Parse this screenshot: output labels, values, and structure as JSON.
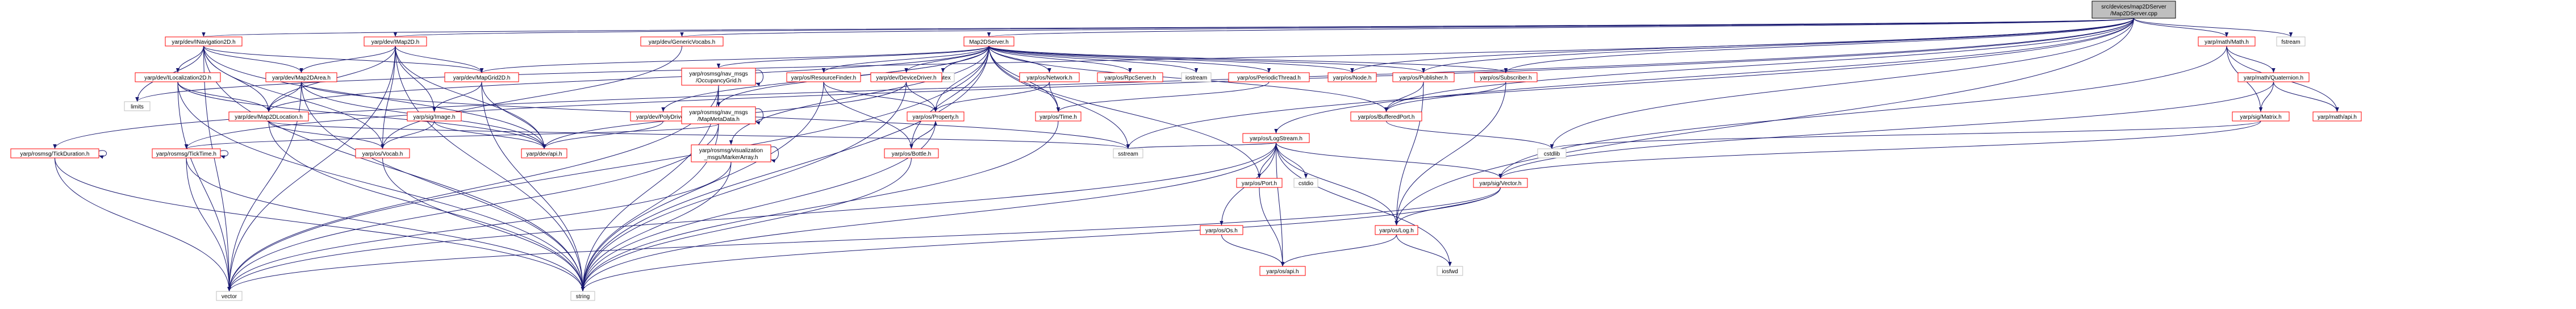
{
  "graph": {
    "colors": {
      "background": "#ffffff",
      "root_fill": "#bfbfbf",
      "root_stroke": "#000000",
      "doc_stroke": "#ff0000",
      "plain_stroke": "#bfbfbf",
      "edge": "#191970",
      "text": "#000000"
    },
    "nodes": [
      {
        "id": "root",
        "lines": [
          "src/devices/map2DServer",
          "/Map2DServer.cpp"
        ],
        "kind": "root"
      },
      {
        "id": "nav2d",
        "lines": [
          "yarp/dev/INavigation2D.h"
        ],
        "kind": "doc"
      },
      {
        "id": "imap2d",
        "lines": [
          "yarp/dev/IMap2D.h"
        ],
        "kind": "doc"
      },
      {
        "id": "genvocab",
        "lines": [
          "yarp/dev/GenericVocabs.h"
        ],
        "kind": "doc"
      },
      {
        "id": "map2dserver_h",
        "lines": [
          "Map2DServer.h"
        ],
        "kind": "doc"
      },
      {
        "id": "ymath",
        "lines": [
          "yarp/math/Math.h"
        ],
        "kind": "doc"
      },
      {
        "id": "fstream",
        "lines": [
          "fstream"
        ],
        "kind": "plain"
      },
      {
        "id": "limits",
        "lines": [
          "limits"
        ],
        "kind": "plain"
      },
      {
        "id": "iloc2d",
        "lines": [
          "yarp/dev/ILocalization2D.h"
        ],
        "kind": "doc"
      },
      {
        "id": "map2darea",
        "lines": [
          "yarp/dev/Map2DArea.h"
        ],
        "kind": "doc"
      },
      {
        "id": "mapgrid2d",
        "lines": [
          "yarp/dev/MapGrid2D.h"
        ],
        "kind": "doc"
      },
      {
        "id": "mutex",
        "lines": [
          "mutex"
        ],
        "kind": "plain"
      },
      {
        "id": "occgrid",
        "lines": [
          "yarp/rosmsg/nav_msgs",
          "/OccupancyGrid.h"
        ],
        "kind": "doc"
      },
      {
        "id": "resfinder",
        "lines": [
          "yarp/os/ResourceFinder.h"
        ],
        "kind": "doc"
      },
      {
        "id": "devdriver",
        "lines": [
          "yarp/dev/DeviceDriver.h"
        ],
        "kind": "doc"
      },
      {
        "id": "network",
        "lines": [
          "yarp/os/Network.h"
        ],
        "kind": "doc"
      },
      {
        "id": "rpcserver",
        "lines": [
          "yarp/os/RpcServer.h"
        ],
        "kind": "doc"
      },
      {
        "id": "iostream",
        "lines": [
          "iostream"
        ],
        "kind": "plain"
      },
      {
        "id": "periodic",
        "lines": [
          "yarp/os/PeriodicThread.h"
        ],
        "kind": "doc"
      },
      {
        "id": "node",
        "lines": [
          "yarp/os/Node.h"
        ],
        "kind": "doc"
      },
      {
        "id": "publisher",
        "lines": [
          "yarp/os/Publisher.h"
        ],
        "kind": "doc"
      },
      {
        "id": "subscriber",
        "lines": [
          "yarp/os/Subscriber.h"
        ],
        "kind": "doc"
      },
      {
        "id": "quaternion",
        "lines": [
          "yarp/math/Quaternion.h"
        ],
        "kind": "doc"
      },
      {
        "id": "map2dloc",
        "lines": [
          "yarp/dev/Map2DLocation.h"
        ],
        "kind": "doc"
      },
      {
        "id": "image",
        "lines": [
          "yarp/sig/Image.h"
        ],
        "kind": "doc"
      },
      {
        "id": "polydriver",
        "lines": [
          "yarp/dev/PolyDriver.h"
        ],
        "kind": "doc"
      },
      {
        "id": "mapmeta",
        "lines": [
          "yarp/rosmsg/nav_msgs",
          "/MapMetaData.h"
        ],
        "kind": "doc"
      },
      {
        "id": "property",
        "lines": [
          "yarp/os/Property.h"
        ],
        "kind": "doc"
      },
      {
        "id": "ostime",
        "lines": [
          "yarp/os/Time.h"
        ],
        "kind": "doc"
      },
      {
        "id": "bufport",
        "lines": [
          "yarp/os/BufferedPort.h"
        ],
        "kind": "doc"
      },
      {
        "id": "logstream",
        "lines": [
          "yarp/os/LogStream.h"
        ],
        "kind": "doc"
      },
      {
        "id": "matrix",
        "lines": [
          "yarp/sig/Matrix.h"
        ],
        "kind": "doc"
      },
      {
        "id": "mathapi",
        "lines": [
          "yarp/math/api.h"
        ],
        "kind": "doc"
      },
      {
        "id": "tickdur",
        "lines": [
          "yarp/rosmsg/TickDuration.h"
        ],
        "kind": "doc"
      },
      {
        "id": "ticktime",
        "lines": [
          "yarp/rosmsg/TickTime.h"
        ],
        "kind": "doc"
      },
      {
        "id": "vocab",
        "lines": [
          "yarp/os/Vocab.h"
        ],
        "kind": "doc"
      },
      {
        "id": "devapi",
        "lines": [
          "yarp/dev/api.h"
        ],
        "kind": "doc"
      },
      {
        "id": "markerarray",
        "lines": [
          "yarp/rosmsg/visualization",
          "_msgs/MarkerArray.h"
        ],
        "kind": "doc"
      },
      {
        "id": "bottle",
        "lines": [
          "yarp/os/Bottle.h"
        ],
        "kind": "doc"
      },
      {
        "id": "sstream",
        "lines": [
          "sstream"
        ],
        "kind": "plain"
      },
      {
        "id": "cstdio",
        "lines": [
          "cstdio"
        ],
        "kind": "plain"
      },
      {
        "id": "osport",
        "lines": [
          "yarp/os/Port.h"
        ],
        "kind": "doc"
      },
      {
        "id": "osos",
        "lines": [
          "yarp/os/Os.h"
        ],
        "kind": "doc"
      },
      {
        "id": "oslog",
        "lines": [
          "yarp/os/Log.h"
        ],
        "kind": "doc"
      },
      {
        "id": "sigvector",
        "lines": [
          "yarp/sig/Vector.h"
        ],
        "kind": "doc"
      },
      {
        "id": "cstdlib",
        "lines": [
          "cstdlib"
        ],
        "kind": "plain"
      },
      {
        "id": "iosfwd",
        "lines": [
          "iosfwd"
        ],
        "kind": "plain"
      },
      {
        "id": "osapi",
        "lines": [
          "yarp/os/api.h"
        ],
        "kind": "doc"
      },
      {
        "id": "vector",
        "lines": [
          "vector"
        ],
        "kind": "plain"
      },
      {
        "id": "string",
        "lines": [
          "string"
        ],
        "kind": "plain"
      }
    ],
    "edges": [
      [
        "root",
        "nav2d"
      ],
      [
        "root",
        "imap2d"
      ],
      [
        "root",
        "genvocab"
      ],
      [
        "root",
        "map2dserver_h"
      ],
      [
        "root",
        "ymath"
      ],
      [
        "root",
        "fstream"
      ],
      [
        "root",
        "limits"
      ],
      [
        "root",
        "tickdur"
      ],
      [
        "root",
        "ticktime"
      ],
      [
        "root",
        "logstream"
      ],
      [
        "root",
        "bufport"
      ],
      [
        "root",
        "publisher"
      ],
      [
        "root",
        "subscriber"
      ],
      [
        "root",
        "node"
      ],
      [
        "root",
        "oslog"
      ],
      [
        "root",
        "cstdlib"
      ],
      [
        "root",
        "sstream"
      ],
      [
        "nav2d",
        "iloc2d"
      ],
      [
        "nav2d",
        "map2darea"
      ],
      [
        "nav2d",
        "map2dloc"
      ],
      [
        "nav2d",
        "vocab"
      ],
      [
        "nav2d",
        "devapi"
      ],
      [
        "nav2d",
        "vector"
      ],
      [
        "nav2d",
        "string"
      ],
      [
        "nav2d",
        "limits"
      ],
      [
        "nav2d",
        "mapgrid2d"
      ],
      [
        "imap2d",
        "map2darea"
      ],
      [
        "imap2d",
        "mapgrid2d"
      ],
      [
        "imap2d",
        "map2dloc"
      ],
      [
        "imap2d",
        "vocab"
      ],
      [
        "imap2d",
        "devapi"
      ],
      [
        "imap2d",
        "string"
      ],
      [
        "imap2d",
        "image"
      ],
      [
        "imap2d",
        "vector"
      ],
      [
        "genvocab",
        "vocab"
      ],
      [
        "map2dserver_h",
        "mutex"
      ],
      [
        "map2dserver_h",
        "occgrid"
      ],
      [
        "map2dserver_h",
        "resfinder"
      ],
      [
        "map2dserver_h",
        "devdriver"
      ],
      [
        "map2dserver_h",
        "network"
      ],
      [
        "map2dserver_h",
        "rpcserver"
      ],
      [
        "map2dserver_h",
        "iostream"
      ],
      [
        "map2dserver_h",
        "periodic"
      ],
      [
        "map2dserver_h",
        "node"
      ],
      [
        "map2dserver_h",
        "publisher"
      ],
      [
        "map2dserver_h",
        "subscriber"
      ],
      [
        "map2dserver_h",
        "polydriver"
      ],
      [
        "map2dserver_h",
        "mapmeta"
      ],
      [
        "map2dserver_h",
        "property"
      ],
      [
        "map2dserver_h",
        "ostime"
      ],
      [
        "map2dserver_h",
        "bufport"
      ],
      [
        "map2dserver_h",
        "string"
      ],
      [
        "map2dserver_h",
        "markerarray"
      ],
      [
        "map2dserver_h",
        "bottle"
      ],
      [
        "map2dserver_h",
        "osport"
      ],
      [
        "map2dserver_h",
        "vector"
      ],
      [
        "map2dserver_h",
        "sstream"
      ],
      [
        "map2dserver_h",
        "mapgrid2d"
      ],
      [
        "map2dserver_h",
        "map2dloc"
      ],
      [
        "ymath",
        "quaternion"
      ],
      [
        "ymath",
        "matrix"
      ],
      [
        "ymath",
        "sigvector"
      ],
      [
        "ymath",
        "mathapi"
      ],
      [
        "iloc2d",
        "map2dloc"
      ],
      [
        "iloc2d",
        "devapi"
      ],
      [
        "iloc2d",
        "vector"
      ],
      [
        "iloc2d",
        "string"
      ],
      [
        "map2darea",
        "map2dloc"
      ],
      [
        "map2darea",
        "vector"
      ],
      [
        "map2darea",
        "string"
      ],
      [
        "map2darea",
        "devapi"
      ],
      [
        "map2darea",
        "sstream"
      ],
      [
        "mapgrid2d",
        "image"
      ],
      [
        "mapgrid2d",
        "devapi"
      ],
      [
        "mapgrid2d",
        "string"
      ],
      [
        "occgrid",
        "occgrid"
      ],
      [
        "occgrid",
        "mapmeta"
      ],
      [
        "occgrid",
        "vector"
      ],
      [
        "occgrid",
        "string"
      ],
      [
        "resfinder",
        "property"
      ],
      [
        "resfinder",
        "bottle"
      ],
      [
        "resfinder",
        "string"
      ],
      [
        "devdriver",
        "property"
      ],
      [
        "devdriver",
        "devapi"
      ],
      [
        "devdriver",
        "string"
      ],
      [
        "network",
        "property"
      ],
      [
        "network",
        "ostime"
      ],
      [
        "periodic",
        "ostime"
      ],
      [
        "publisher",
        "bufport"
      ],
      [
        "publisher",
        "oslog"
      ],
      [
        "subscriber",
        "bufport"
      ],
      [
        "subscriber",
        "oslog"
      ],
      [
        "quaternion",
        "matrix"
      ],
      [
        "quaternion",
        "sigvector"
      ],
      [
        "quaternion",
        "mathapi"
      ],
      [
        "map2dloc",
        "vocab"
      ],
      [
        "map2dloc",
        "string"
      ],
      [
        "map2dloc",
        "sstream"
      ],
      [
        "image",
        "vocab"
      ],
      [
        "image",
        "devapi"
      ],
      [
        "polydriver",
        "devapi"
      ],
      [
        "mapmeta",
        "mapmeta"
      ],
      [
        "mapmeta",
        "ticktime"
      ],
      [
        "mapmeta",
        "vector"
      ],
      [
        "mapmeta",
        "string"
      ],
      [
        "property",
        "bottle"
      ],
      [
        "property",
        "string"
      ],
      [
        "ostime",
        "string"
      ],
      [
        "bufport",
        "cstdlib"
      ],
      [
        "logstream",
        "osport"
      ],
      [
        "logstream",
        "osos"
      ],
      [
        "logstream",
        "oslog"
      ],
      [
        "logstream",
        "cstdio"
      ],
      [
        "logstream",
        "iosfwd"
      ],
      [
        "logstream",
        "vector"
      ],
      [
        "logstream",
        "string"
      ],
      [
        "logstream",
        "sstream"
      ],
      [
        "logstream",
        "sigvector"
      ],
      [
        "logstream",
        "osapi"
      ],
      [
        "matrix",
        "sigvector"
      ],
      [
        "matrix",
        "cstdlib"
      ],
      [
        "tickdur",
        "tickdur"
      ],
      [
        "tickdur",
        "vector"
      ],
      [
        "tickdur",
        "string"
      ],
      [
        "ticktime",
        "ticktime"
      ],
      [
        "ticktime",
        "vector"
      ],
      [
        "ticktime",
        "string"
      ],
      [
        "vocab",
        "string"
      ],
      [
        "markerarray",
        "markerarray"
      ],
      [
        "markerarray",
        "vector"
      ],
      [
        "markerarray",
        "string"
      ],
      [
        "bottle",
        "property"
      ],
      [
        "bottle",
        "string"
      ],
      [
        "osport",
        "osapi"
      ],
      [
        "osos",
        "osapi"
      ],
      [
        "oslog",
        "osapi"
      ],
      [
        "oslog",
        "iosfwd"
      ],
      [
        "sigvector",
        "oslog"
      ],
      [
        "sigvector",
        "vector"
      ],
      [
        "sigvector",
        "string"
      ]
    ]
  }
}
